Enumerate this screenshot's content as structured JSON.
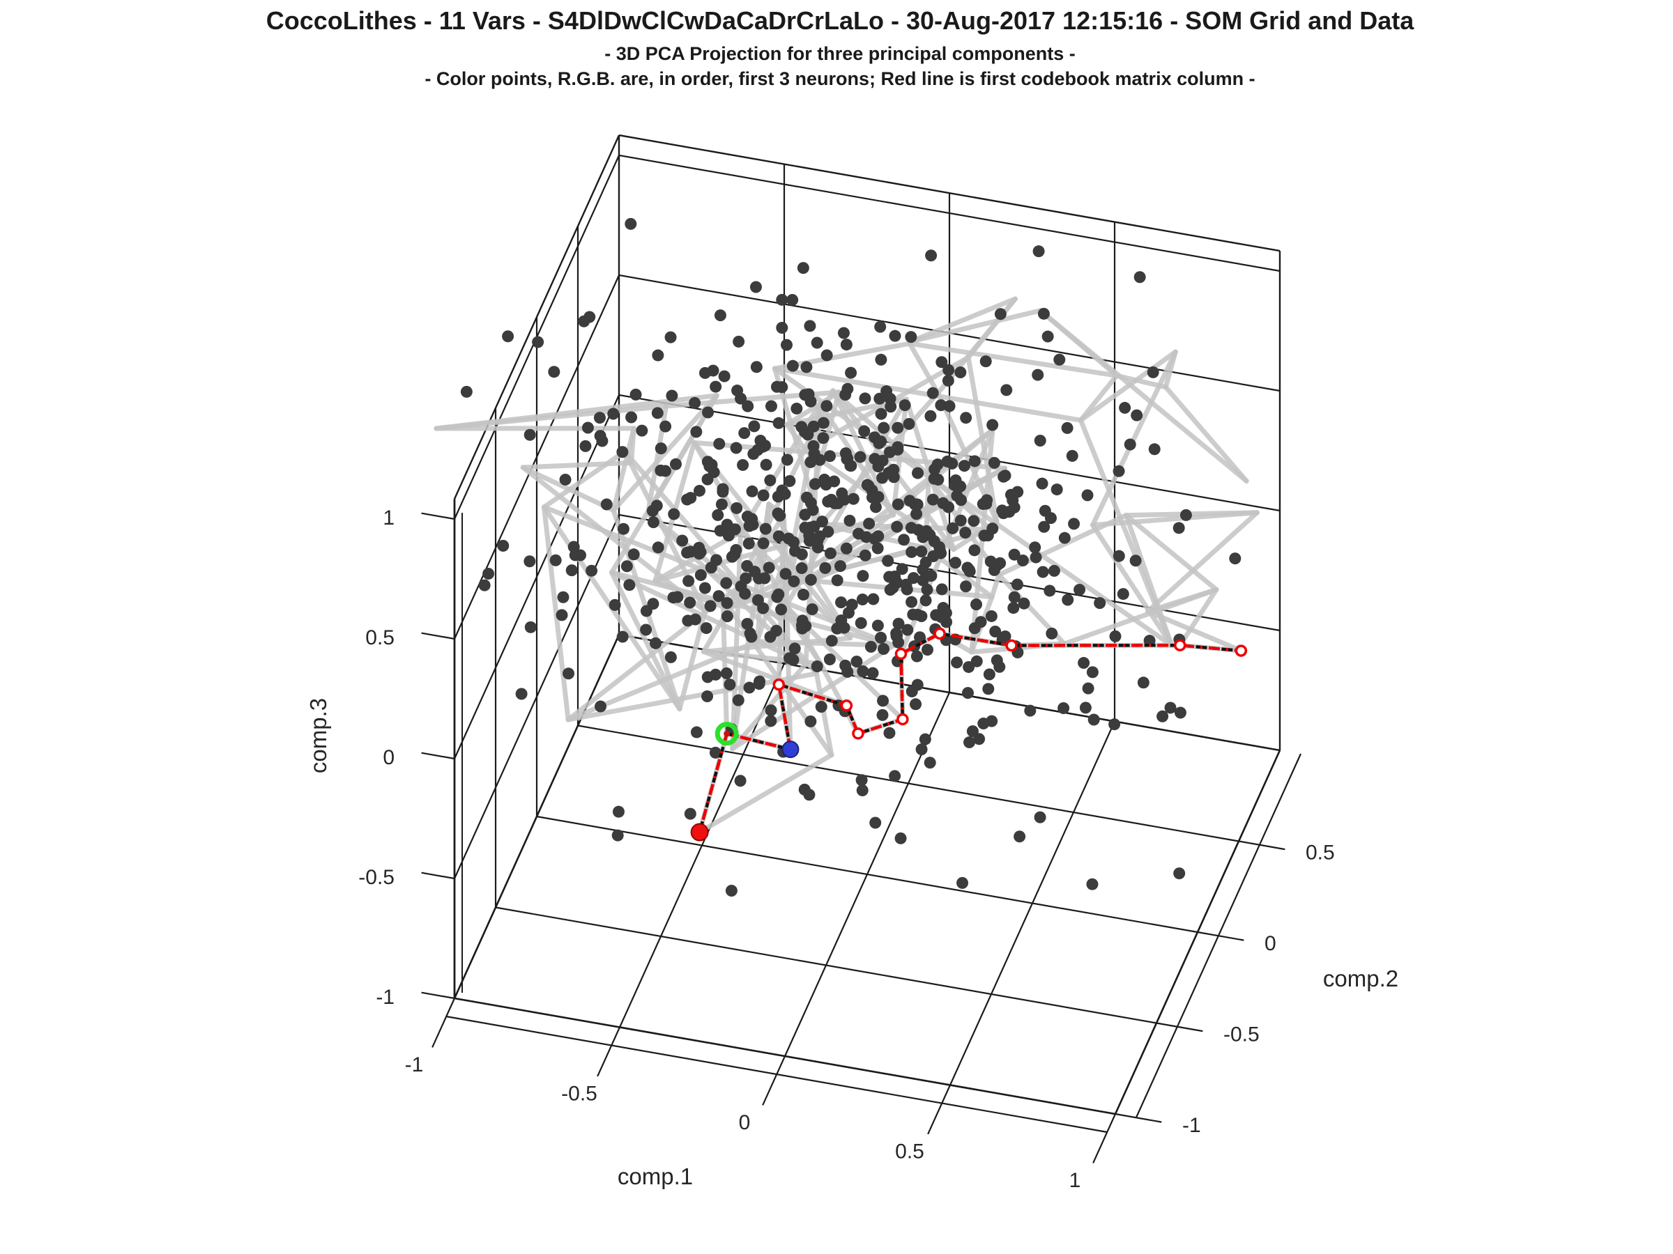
{
  "title": {
    "line1": "CoccoLithes - 11 Vars - S4DlDwClCwDaCaDrCrLaLo - 30-Aug-2017 12:15:16 - SOM Grid and Data",
    "line2": "- 3D PCA Projection for three principal components -",
    "line3": "- Color points, R.G.B. are, in order, first 3 neurons; Red line is first codebook matrix column -"
  },
  "chart_data": {
    "type": "scatter",
    "subtype": "3d-scatter-with-som-grid",
    "axes": {
      "x": {
        "label": "comp.1",
        "ticks": [
          -1,
          -0.5,
          0,
          0.5,
          1
        ],
        "tick_labels": [
          "-1",
          "-0.5",
          "0",
          "0.5",
          "1"
        ],
        "range": [
          -1,
          1
        ]
      },
      "y": {
        "label": "comp.2",
        "ticks": [
          -1,
          -0.5,
          0,
          0.5
        ],
        "tick_labels": [
          "-1",
          "-0.5",
          "0",
          "0.5"
        ],
        "range": [
          -1,
          1
        ]
      },
      "z": {
        "label": "comp.3",
        "ticks": [
          -1,
          -0.5,
          0,
          0.5,
          1
        ],
        "tick_labels": [
          "-1",
          "-0.5",
          "0",
          "0.5",
          "1"
        ],
        "range": [
          -1,
          1.084
        ]
      }
    },
    "layout": {
      "grid": true,
      "legend": false,
      "box_walls": [
        "x-min wall",
        "y-max wall",
        "floor"
      ]
    },
    "view": {
      "origin": [
        1244,
        911
      ],
      "ux": [
        474,
        83
      ],
      "uy": [
        118,
        -261
      ],
      "uz": [
        0,
        -344
      ]
    },
    "colors": {
      "scatter": "#3c3c3c",
      "som_mesh": "#c4c4c4",
      "codebook_line_red": "#ee0000",
      "codebook_line_black": "#111111",
      "neuron_red": "#ee1111",
      "neuron_green": "#2be02b",
      "neuron_blue": "#2f3fd3",
      "axis_lines": "#1b1b1b"
    },
    "codebook_first_column": {
      "description": "Red dash-dot polyline through first codebook matrix column; first three nodes are neurons 1-3 (R,G,B)",
      "points": [
        [
          -0.42,
          -0.35,
          -0.66
        ],
        [
          -0.35,
          -0.3,
          -0.27
        ],
        [
          -0.17,
          -0.25,
          -0.33
        ],
        [
          -0.23,
          -0.15,
          -0.15
        ],
        [
          -0.05,
          -0.05,
          -0.27
        ],
        [
          -0.04,
          0.05,
          -0.46
        ],
        [
          0.07,
          0.15,
          -0.45
        ],
        [
          0.04,
          0.25,
          -0.26
        ],
        [
          0.12,
          0.4,
          -0.27
        ],
        [
          0.3,
          0.55,
          -0.39
        ],
        [
          0.76,
          0.75,
          -0.43
        ],
        [
          0.92,
          0.85,
          -0.49
        ]
      ],
      "neurons": [
        {
          "index": 0,
          "name": "neuron-1",
          "color_key": "neuron_red",
          "marker": "filled-circle"
        },
        {
          "index": 1,
          "name": "neuron-2",
          "color_key": "neuron_green",
          "marker": "open-ring"
        },
        {
          "index": 2,
          "name": "neuron-3",
          "color_key": "neuron_blue",
          "marker": "filled-circle"
        }
      ]
    },
    "som_mesh": {
      "rows": 7,
      "cols": 12,
      "seed": 777,
      "jitter": [
        0.26,
        0.2,
        0.3
      ],
      "z_base": -0.22,
      "z_step": 0.185,
      "stroke_width": 7
    },
    "scatter_points": {
      "count": 560,
      "seed": 20170830,
      "center": [
        -0.08,
        0.1,
        0.3
      ],
      "spread": [
        0.45,
        0.4,
        0.38
      ],
      "accept": {
        "x": [
          -1.45,
          1.05
        ],
        "y": [
          -1.0,
          1.0
        ],
        "z": [
          -1.02,
          1.07
        ]
      },
      "radius": 8.5,
      "outliers": [
        [
          -0.865,
          0.6,
          1.05
        ],
        [
          0.32,
          0.8,
          1.07
        ]
      ]
    }
  },
  "labels": {
    "comp1": "comp.1",
    "comp2": "comp.2",
    "comp3": "comp.3"
  }
}
